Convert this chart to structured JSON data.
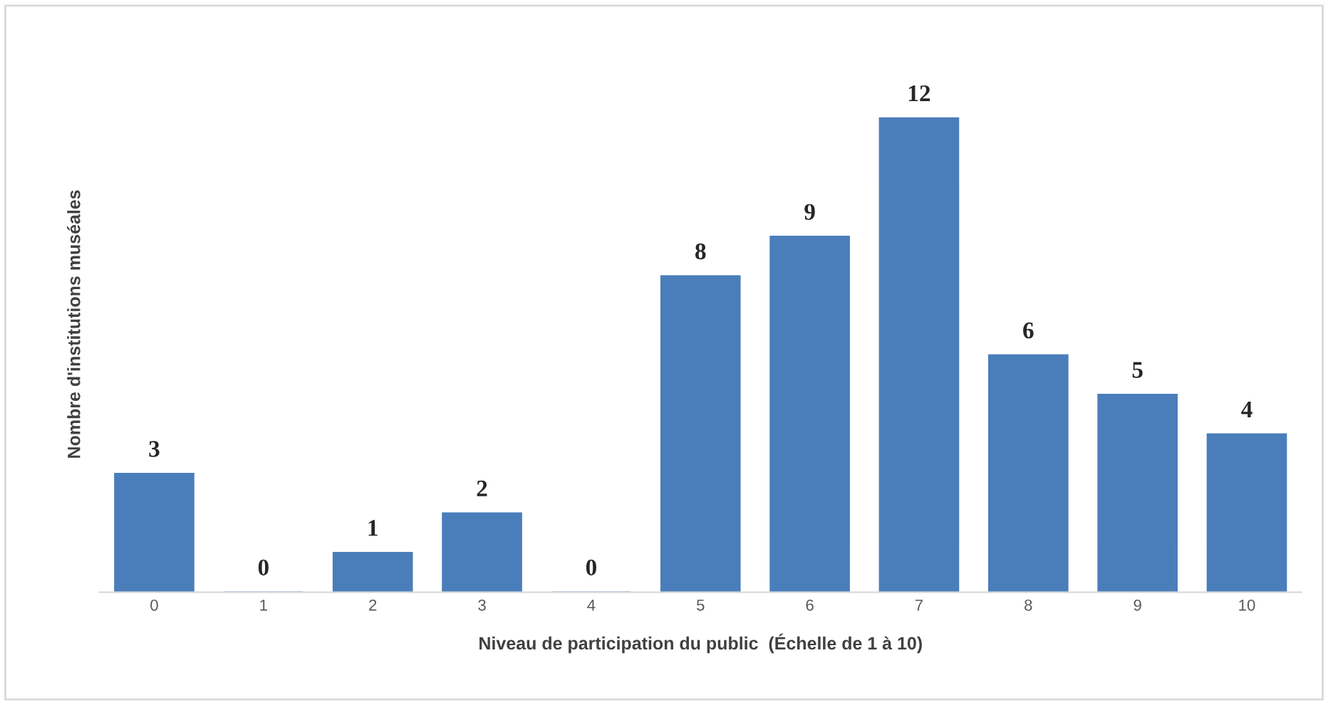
{
  "chart_data": {
    "type": "bar",
    "categories": [
      "0",
      "1",
      "2",
      "3",
      "4",
      "5",
      "6",
      "7",
      "8",
      "9",
      "10"
    ],
    "values": [
      3,
      0,
      1,
      2,
      0,
      8,
      9,
      12,
      6,
      5,
      4
    ],
    "color": "#4a7ebb",
    "data_labels": true,
    "tick_labels": "x",
    "grid": false,
    "legend": false,
    "xlabel": "Niveau de participation du public  (Échelle de 1 à 10)",
    "ylabel": "Nombre d'institutions muséales"
  }
}
